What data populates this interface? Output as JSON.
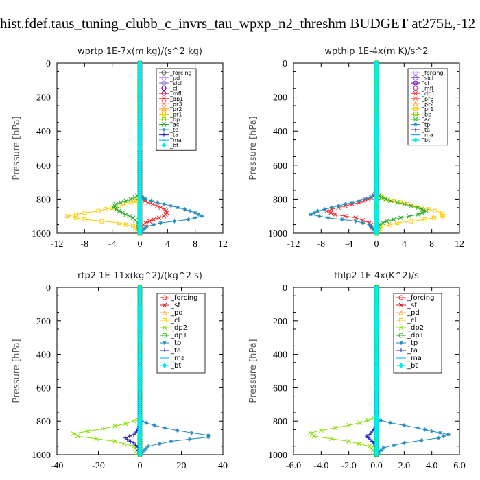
{
  "figure_title": "hist.fdef.taus_tuning_clubb_c_invrs_tau_wpxp_n2_threshm  BUDGET at275E,-12",
  "chart_data": [
    {
      "type": "line",
      "title": "wprtp   1E-7x(m kg)/(s^2 kg)",
      "ylabel": "Pressure [hPa]",
      "xlim": [
        -12,
        12
      ],
      "ylim": [
        1000,
        0
      ],
      "xticks": [
        "-12",
        "-8",
        "-4",
        "0",
        "4",
        "8",
        "12"
      ],
      "yticks": [
        "0",
        "200",
        "400",
        "600",
        "800",
        "1000"
      ],
      "series": [
        {
          "name": "_forcing",
          "color": "#555555",
          "marker": "o",
          "x": [
            0,
            0
          ],
          "y": [
            0,
            1000
          ]
        },
        {
          "name": "_pd",
          "color": "#cc99ff",
          "marker": "o",
          "x": [
            0,
            0
          ],
          "y": [
            0,
            1000
          ]
        },
        {
          "name": "_sicl",
          "color": "#8866cc",
          "marker": "o",
          "x": [
            0,
            0
          ],
          "y": [
            0,
            1000
          ]
        },
        {
          "name": "_cl",
          "color": "#5500aa",
          "marker": "o",
          "x": [
            0,
            0
          ],
          "y": [
            0,
            1000
          ]
        },
        {
          "name": "_mfl",
          "color": "#cc2266",
          "marker": "o",
          "x": [
            0,
            0
          ],
          "y": [
            0,
            1000
          ]
        },
        {
          "name": "_dp1",
          "color": "#ff2222",
          "marker": "x",
          "x": [
            0,
            0,
            0,
            0.3,
            1.2,
            2.5,
            3.6,
            3.9,
            3.5,
            2.0,
            0.8,
            0.2,
            0
          ],
          "y": [
            0,
            760,
            790,
            800,
            820,
            840,
            860,
            880,
            900,
            920,
            940,
            960,
            1000
          ]
        },
        {
          "name": "_pr3",
          "color": "#ff5555",
          "marker": "x",
          "x": [
            0,
            0
          ],
          "y": [
            0,
            1000
          ]
        },
        {
          "name": "_pr2",
          "color": "#ff9900",
          "marker": "^",
          "x": [
            0,
            0
          ],
          "y": [
            0,
            1000
          ]
        },
        {
          "name": "_pr1",
          "color": "#ffcc00",
          "marker": "s",
          "x": [
            0,
            0,
            -0.5,
            -2,
            -4,
            -6,
            -8,
            -10.5,
            -8,
            -3,
            -1,
            0
          ],
          "y": [
            0,
            790,
            810,
            830,
            850,
            870,
            880,
            900,
            920,
            940,
            960,
            1000
          ]
        },
        {
          "name": "_bp",
          "color": "#88dd00",
          "marker": "s",
          "x": [
            0,
            0
          ],
          "y": [
            0,
            1000
          ]
        },
        {
          "name": "_ac",
          "color": "#22aa22",
          "marker": "x",
          "x": [
            0,
            0,
            -0.7,
            -2,
            -3.5,
            -3.8,
            -3,
            -2,
            -1,
            -0.3,
            0
          ],
          "y": [
            0,
            770,
            790,
            810,
            830,
            850,
            870,
            890,
            910,
            940,
            1000
          ]
        },
        {
          "name": "_tp",
          "color": "#2288bb",
          "marker": "*",
          "x": [
            0,
            0,
            0.8,
            2.5,
            4.5,
            6.5,
            8,
            9,
            7,
            3,
            1,
            0
          ],
          "y": [
            0,
            780,
            800,
            820,
            840,
            860,
            880,
            900,
            920,
            940,
            960,
            1000
          ]
        },
        {
          "name": "_ta",
          "color": "#2222cc",
          "marker": "+",
          "x": [
            0,
            0
          ],
          "y": [
            0,
            1000
          ]
        },
        {
          "name": "_ma",
          "color": "#00aaff",
          "marker": "-",
          "x": [
            0,
            0
          ],
          "y": [
            0,
            1000
          ]
        },
        {
          "name": "_bt",
          "color": "#00eeee",
          "marker": "D",
          "x": [
            0,
            0
          ],
          "y": [
            0,
            1000
          ]
        }
      ]
    },
    {
      "type": "line",
      "title": "wpthlp   1E-4x(m K)/s^2",
      "ylabel": "Pressure [hPa]",
      "xlim": [
        -12,
        12
      ],
      "ylim": [
        1000,
        0
      ],
      "xticks": [
        "-12",
        "-8",
        "-4",
        "0",
        "4",
        "8",
        "12"
      ],
      "yticks": [
        "0",
        "200",
        "400",
        "600",
        "800",
        "1000"
      ],
      "series": [
        {
          "name": "_forcing",
          "color": "#cc99ff",
          "marker": "o",
          "x": [
            0,
            0
          ],
          "y": [
            0,
            1000
          ]
        },
        {
          "name": "_sicl",
          "color": "#8866cc",
          "marker": "o",
          "x": [
            0,
            0
          ],
          "y": [
            0,
            1000
          ]
        },
        {
          "name": "_cl",
          "color": "#5500aa",
          "marker": "o",
          "x": [
            0,
            0
          ],
          "y": [
            0,
            1000
          ]
        },
        {
          "name": "_mfl",
          "color": "#cc2266",
          "marker": "o",
          "x": [
            0,
            0
          ],
          "y": [
            0,
            1000
          ]
        },
        {
          "name": "_dp1",
          "color": "#ff2222",
          "marker": "x",
          "x": [
            0,
            0,
            -0.3,
            -1.2,
            -2.5,
            -4.5,
            -6.5,
            -7.2,
            -6,
            -3,
            -1,
            0
          ],
          "y": [
            0,
            760,
            780,
            800,
            820,
            840,
            860,
            870,
            890,
            910,
            940,
            1000
          ]
        },
        {
          "name": "_pr3",
          "color": "#ff5555",
          "marker": "x",
          "x": [
            0,
            0
          ],
          "y": [
            0,
            1000
          ]
        },
        {
          "name": "_pr2",
          "color": "#ff9900",
          "marker": "^",
          "x": [
            0,
            0
          ],
          "y": [
            0,
            1000
          ]
        },
        {
          "name": "_pr1",
          "color": "#ffcc00",
          "marker": "s",
          "x": [
            0,
            0,
            0.8,
            2.5,
            4.5,
            6.5,
            8.5,
            9.5,
            9.6,
            7,
            3,
            1,
            0
          ],
          "y": [
            0,
            770,
            790,
            810,
            830,
            850,
            870,
            880,
            900,
            920,
            940,
            960,
            1000
          ]
        },
        {
          "name": "_bp",
          "color": "#88dd00",
          "marker": "s",
          "x": [
            0,
            0
          ],
          "y": [
            0,
            1000
          ]
        },
        {
          "name": "_ac",
          "color": "#22aa22",
          "marker": "x",
          "x": [
            0,
            0,
            0.7,
            2,
            4,
            6,
            7.2,
            6,
            3.5,
            1.5,
            0.4,
            0
          ],
          "y": [
            0,
            770,
            790,
            810,
            830,
            850,
            870,
            890,
            910,
            930,
            950,
            1000
          ]
        },
        {
          "name": "_tp",
          "color": "#2288bb",
          "marker": "*",
          "x": [
            0,
            0,
            -0.8,
            -2.5,
            -4.5,
            -6.5,
            -8.5,
            -9.5,
            -7,
            -3,
            -1,
            0
          ],
          "y": [
            0,
            770,
            790,
            810,
            830,
            850,
            870,
            890,
            910,
            930,
            950,
            1000
          ]
        },
        {
          "name": "_ta",
          "color": "#2222cc",
          "marker": "+",
          "x": [
            0,
            0
          ],
          "y": [
            0,
            1000
          ]
        },
        {
          "name": "_ma",
          "color": "#00aaff",
          "marker": "-",
          "x": [
            0,
            0
          ],
          "y": [
            0,
            1000
          ]
        },
        {
          "name": "_bt",
          "color": "#00eeee",
          "marker": "D",
          "x": [
            0,
            0
          ],
          "y": [
            0,
            1000
          ]
        }
      ]
    },
    {
      "type": "line",
      "title": "rtp2   1E-11x(kg^2)/(kg^2 s)",
      "ylabel": "Pressure [hPa]",
      "xlim": [
        -40,
        40
      ],
      "ylim": [
        1000,
        0
      ],
      "xticks": [
        "-40",
        "-20",
        "0",
        "20",
        "40"
      ],
      "yticks": [
        "0",
        "200",
        "400",
        "600",
        "800",
        "1000"
      ],
      "series": [
        {
          "name": "_forcing",
          "color": "#ff2222",
          "marker": "o",
          "x": [
            0,
            0
          ],
          "y": [
            0,
            1000
          ]
        },
        {
          "name": "_sf",
          "color": "#cc2222",
          "marker": "x",
          "x": [
            0,
            0
          ],
          "y": [
            0,
            1000
          ]
        },
        {
          "name": "_pd",
          "color": "#ffaa44",
          "marker": "^",
          "x": [
            0,
            0
          ],
          "y": [
            0,
            1000
          ]
        },
        {
          "name": "_cl",
          "color": "#ffcc00",
          "marker": "s",
          "x": [
            0,
            0
          ],
          "y": [
            0,
            1000
          ]
        },
        {
          "name": "_dp2",
          "color": "#88dd00",
          "marker": "x",
          "x": [
            0,
            0,
            -1,
            -3,
            -7,
            -12,
            -18,
            -25,
            -32,
            -30,
            -12,
            -3,
            0
          ],
          "y": [
            0,
            780,
            790,
            800,
            815,
            830,
            845,
            860,
            875,
            890,
            920,
            950,
            1000
          ]
        },
        {
          "name": "_dp1",
          "color": "#22aa22",
          "marker": "o",
          "x": [
            0,
            0
          ],
          "y": [
            0,
            1000
          ]
        },
        {
          "name": "_tp",
          "color": "#2288bb",
          "marker": "*",
          "x": [
            0,
            0,
            1,
            3,
            7,
            12,
            18,
            25,
            33,
            33,
            15,
            4,
            0
          ],
          "y": [
            0,
            790,
            800,
            810,
            825,
            840,
            855,
            870,
            885,
            895,
            920,
            950,
            1000
          ]
        },
        {
          "name": "_ta",
          "color": "#2222cc",
          "marker": "+",
          "x": [
            0,
            0,
            -0.5,
            -1.5,
            -3,
            -5,
            -7,
            -6,
            -3,
            -1,
            0
          ],
          "y": [
            0,
            820,
            840,
            860,
            880,
            890,
            900,
            910,
            930,
            960,
            1000
          ]
        },
        {
          "name": "_ma",
          "color": "#00aaff",
          "marker": "-",
          "x": [
            0,
            0
          ],
          "y": [
            0,
            1000
          ]
        },
        {
          "name": "_bt",
          "color": "#00eeee",
          "marker": "D",
          "x": [
            0,
            0
          ],
          "y": [
            0,
            1000
          ]
        }
      ]
    },
    {
      "type": "line",
      "title": "thlp2   1E-4x(K^2)/s",
      "ylabel": "Pressure [hPa]",
      "xlim": [
        -6,
        6
      ],
      "ylim": [
        1000,
        0
      ],
      "xticks": [
        "-6.0",
        "-4.0",
        "-2.0",
        "0.0",
        "2.0",
        "4.0",
        "6.0"
      ],
      "yticks": [
        "0",
        "200",
        "400",
        "600",
        "800",
        "1000"
      ],
      "series": [
        {
          "name": "_forcing",
          "color": "#ff2222",
          "marker": "o",
          "x": [
            0,
            0
          ],
          "y": [
            0,
            1000
          ]
        },
        {
          "name": "_sf",
          "color": "#cc2222",
          "marker": "x",
          "x": [
            0,
            0
          ],
          "y": [
            0,
            1000
          ]
        },
        {
          "name": "_pd",
          "color": "#ffaa44",
          "marker": "^",
          "x": [
            0,
            0
          ],
          "y": [
            0,
            1000
          ]
        },
        {
          "name": "_cl",
          "color": "#ffcc00",
          "marker": "s",
          "x": [
            0,
            0
          ],
          "y": [
            0,
            1000
          ]
        },
        {
          "name": "_dp2",
          "color": "#88dd00",
          "marker": "x",
          "x": [
            0,
            0,
            -0.2,
            -0.6,
            -1.2,
            -2,
            -3,
            -4,
            -4.8,
            -4.5,
            -2,
            -0.5,
            0
          ],
          "y": [
            0,
            770,
            780,
            795,
            810,
            825,
            840,
            855,
            870,
            890,
            920,
            950,
            1000
          ]
        },
        {
          "name": "_dp1",
          "color": "#22aa22",
          "marker": "o",
          "x": [
            0,
            0
          ],
          "y": [
            0,
            1000
          ]
        },
        {
          "name": "_tp",
          "color": "#2288bb",
          "marker": "*",
          "x": [
            0,
            0,
            0.3,
            1,
            2,
            3,
            4,
            5.2,
            4.5,
            2,
            0.5,
            0
          ],
          "y": [
            0,
            780,
            795,
            810,
            825,
            840,
            860,
            880,
            900,
            930,
            960,
            1000
          ]
        },
        {
          "name": "_ta",
          "color": "#2222cc",
          "marker": "+",
          "x": [
            0,
            0,
            -0.1,
            -0.3,
            -0.5,
            -0.7,
            -0.6,
            -0.3,
            -0.1,
            0
          ],
          "y": [
            0,
            820,
            840,
            860,
            880,
            890,
            900,
            920,
            950,
            1000
          ]
        },
        {
          "name": "_ma",
          "color": "#00aaff",
          "marker": "-",
          "x": [
            0,
            0
          ],
          "y": [
            0,
            1000
          ]
        },
        {
          "name": "_bt",
          "color": "#00eeee",
          "marker": "D",
          "x": [
            0,
            0
          ],
          "y": [
            0,
            1000
          ]
        }
      ]
    }
  ]
}
